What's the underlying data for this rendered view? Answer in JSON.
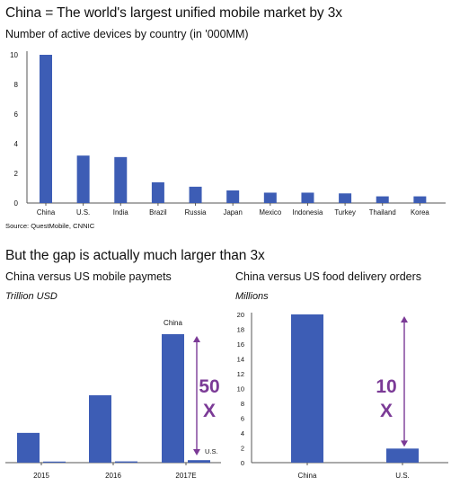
{
  "title": "China = The world's largest unified mobile market by 3x",
  "subtitle": "Number of active devices by country (in '000MM)",
  "source": "Source: QuestMobile, CNNIC",
  "section2_title": "But the gap is actually much larger than 3x",
  "colors": {
    "bar": "#3d5db5",
    "annotation": "#7b3a96",
    "axis": "#555555"
  },
  "chart_data": [
    {
      "type": "bar",
      "title": "Number of active devices by country (in '000MM)",
      "categories": [
        "China",
        "U.S.",
        "India",
        "Brazil",
        "Russia",
        "Japan",
        "Mexico",
        "Indonesia",
        "Turkey",
        "Thailand",
        "Korea"
      ],
      "values": [
        10.0,
        3.2,
        3.1,
        1.4,
        1.1,
        0.85,
        0.7,
        0.7,
        0.65,
        0.45,
        0.45
      ],
      "yticks": [
        "0",
        "2",
        "4",
        "6",
        "8",
        "10"
      ],
      "ylim": [
        0,
        10
      ]
    },
    {
      "type": "bar",
      "title": "China versus US mobile paymets",
      "ylabel": "Trillion USD",
      "categories": [
        "2015",
        "2016",
        "2017E"
      ],
      "series": [
        {
          "values": [
            0.95,
            2.15,
            4.1
          ]
        },
        {
          "values": [
            0.03,
            0.04,
            0.08
          ]
        }
      ],
      "annotations": {
        "top_label": "China",
        "bottom_label": "U.S.",
        "multiplier_line1": "50",
        "multiplier_line2": "X"
      }
    },
    {
      "type": "bar",
      "title": "China versus US food delivery orders",
      "ylabel": "Millions",
      "categories": [
        "China",
        "U.S."
      ],
      "values": [
        20,
        1.9
      ],
      "yticks": [
        "0",
        "2",
        "4",
        "6",
        "8",
        "10",
        "12",
        "14",
        "16",
        "18",
        "20"
      ],
      "ylim": [
        0,
        20
      ],
      "annotations": {
        "multiplier_line1": "10",
        "multiplier_line2": "X"
      }
    }
  ]
}
